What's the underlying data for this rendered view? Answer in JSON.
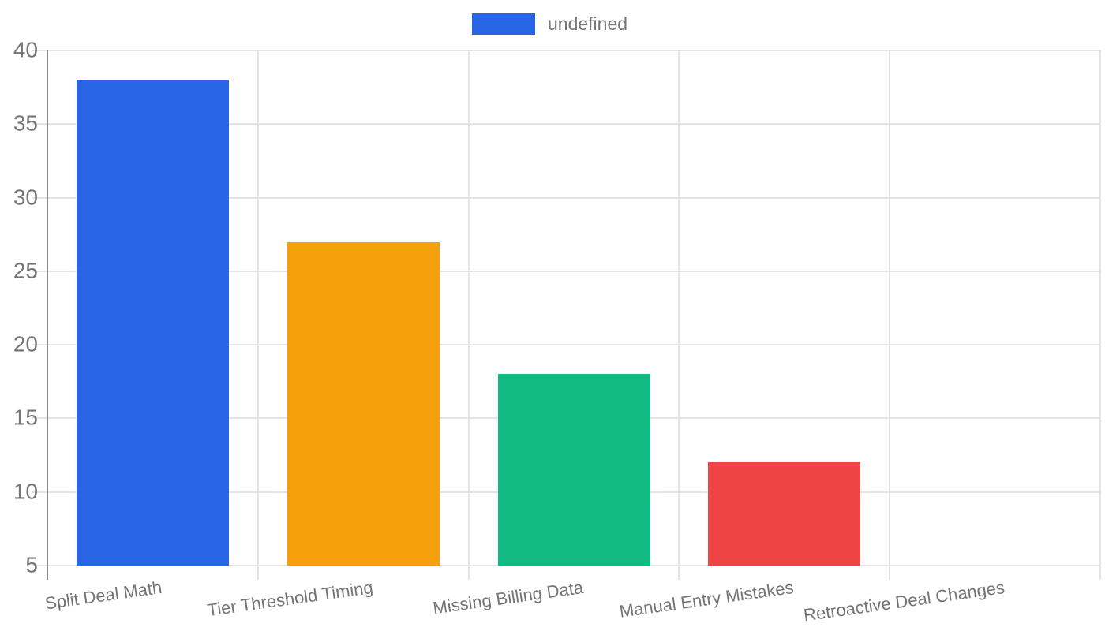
{
  "legend": {
    "label": "undefined",
    "swatch_color": "#2866e6"
  },
  "chart_data": {
    "type": "bar",
    "title": "",
    "xlabel": "",
    "ylabel": "",
    "categories": [
      "Split Deal Math",
      "Tier Threshold Timing",
      "Missing Billing Data",
      "Manual Entry Mistakes",
      "Retroactive Deal Changes"
    ],
    "values": [
      38,
      27,
      18,
      12,
      5
    ],
    "bar_colors": [
      "#2866e6",
      "#f59f0b",
      "#12b981",
      "#ef4444",
      null
    ],
    "ylim": [
      5,
      40
    ],
    "yticks": [
      5,
      10,
      15,
      20,
      25,
      30,
      35,
      40
    ],
    "grid": true,
    "legend_position": "top",
    "colors": {
      "axis_line": "#8a8a8a",
      "gridline": "#e4e4e4",
      "tick_text": "#757575"
    }
  }
}
